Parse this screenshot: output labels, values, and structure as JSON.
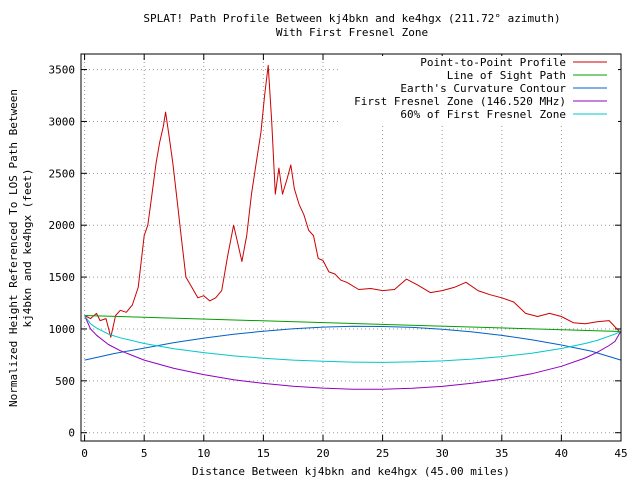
{
  "chart_data": {
    "type": "line",
    "title": "SPLAT! Path Profile Between kj4bkn and ke4hgx (211.72° azimuth)",
    "subtitle": "With First Fresnel Zone",
    "xlabel": "Distance Between kj4bkn and ke4hgx (45.00 miles)",
    "ylabel_line1": "Normalized Height Referenced To LOS Path Between",
    "ylabel_line2": "kj4bkn and ke4hgx (feet)",
    "xlim": [
      -0.3,
      45
    ],
    "ylim": [
      -80,
      3650
    ],
    "xticks": [
      0,
      5,
      10,
      15,
      20,
      25,
      30,
      35,
      40,
      45
    ],
    "yticks": [
      0,
      500,
      1000,
      1500,
      2000,
      2500,
      3000,
      3500
    ],
    "grid": true,
    "legend_position": "top-right",
    "series": [
      {
        "name": "Point-to-Point Profile",
        "color": "#cc0000",
        "x": [
          0,
          0.5,
          1,
          1.3,
          1.8,
          2.2,
          2.6,
          3,
          3.5,
          4,
          4.5,
          5,
          5.3,
          5.6,
          6,
          6.3,
          6.6,
          6.8,
          7.1,
          7.4,
          7.7,
          8.1,
          8.5,
          9,
          9.5,
          10,
          10.5,
          11,
          11.5,
          12,
          12.5,
          12.8,
          13.2,
          13.6,
          14,
          14.4,
          14.8,
          15.1,
          15.4,
          15.7,
          16,
          16.3,
          16.6,
          17,
          17.3,
          17.6,
          18,
          18.4,
          18.8,
          19.2,
          19.6,
          20,
          20.5,
          21,
          21.5,
          22,
          23,
          24,
          25,
          26,
          27,
          28,
          29,
          30,
          31,
          32,
          33,
          34,
          35,
          36,
          37,
          38,
          39,
          40,
          41,
          42,
          43,
          44,
          45
        ],
        "y": [
          1130,
          1100,
          1150,
          1080,
          1100,
          920,
          1130,
          1180,
          1160,
          1230,
          1400,
          1900,
          2000,
          2250,
          2600,
          2800,
          2950,
          3090,
          2850,
          2600,
          2300,
          1900,
          1500,
          1400,
          1300,
          1320,
          1270,
          1300,
          1370,
          1700,
          2000,
          1850,
          1650,
          1900,
          2300,
          2600,
          2900,
          3250,
          3540,
          3000,
          2300,
          2550,
          2300,
          2450,
          2580,
          2350,
          2200,
          2100,
          1950,
          1900,
          1680,
          1660,
          1550,
          1530,
          1470,
          1450,
          1380,
          1390,
          1370,
          1380,
          1480,
          1420,
          1350,
          1370,
          1400,
          1450,
          1370,
          1330,
          1300,
          1260,
          1150,
          1120,
          1150,
          1120,
          1060,
          1050,
          1070,
          1080,
          960
        ]
      },
      {
        "name": "Line of Sight Path",
        "color": "#00a000",
        "x": [
          0,
          45
        ],
        "y": [
          1130,
          975
        ]
      },
      {
        "name": "Earth's Curvature Contour",
        "color": "#0060c8",
        "x": [
          0,
          2.5,
          5,
          7.5,
          10,
          12.5,
          15,
          17.5,
          20,
          22.5,
          25,
          27.5,
          30,
          32.5,
          35,
          37.5,
          40,
          42.5,
          45
        ],
        "y": [
          700,
          763,
          815,
          868,
          912,
          948,
          978,
          1002,
          1018,
          1026,
          1024,
          1015,
          998,
          972,
          938,
          896,
          845,
          786,
          700
        ]
      },
      {
        "name": "First Fresnel Zone (146.520 MHz)",
        "color": "#9000c0",
        "x": [
          0,
          0.5,
          1,
          2,
          3,
          5,
          7.5,
          10,
          12.5,
          15,
          17.5,
          20,
          22.5,
          25,
          27.5,
          30,
          32.5,
          35,
          37.5,
          40,
          42,
          43,
          44,
          44.5,
          45
        ],
        "y": [
          1130,
          1000,
          940,
          850,
          790,
          700,
          620,
          560,
          510,
          475,
          448,
          430,
          418,
          418,
          428,
          446,
          476,
          515,
          568,
          640,
          720,
          775,
          840,
          880,
          980
        ]
      },
      {
        "name": "60% of First Fresnel Zone",
        "color": "#00c8c8",
        "x": [
          0,
          0.5,
          1,
          2,
          3,
          5,
          7.5,
          10,
          12.5,
          15,
          17.5,
          20,
          22.5,
          25,
          27.5,
          30,
          32.5,
          35,
          37.5,
          40,
          42,
          43,
          44,
          44.5,
          45
        ],
        "y": [
          1130,
          1050,
          1010,
          950,
          915,
          860,
          810,
          772,
          740,
          718,
          700,
          688,
          680,
          678,
          682,
          692,
          709,
          733,
          765,
          812,
          860,
          890,
          930,
          950,
          975
        ]
      }
    ]
  }
}
